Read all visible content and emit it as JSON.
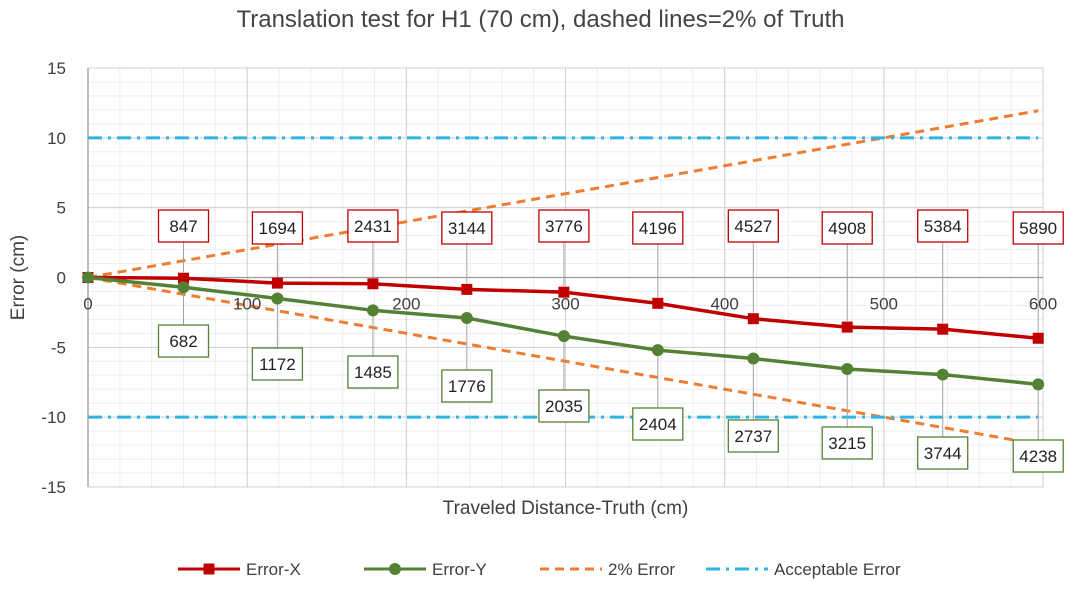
{
  "chart_data": {
    "type": "line",
    "title": "Translation test for H1 (70 cm), dashed lines=2% of Truth",
    "xlabel": "Traveled Distance-Truth (cm)",
    "ylabel": "Error (cm)",
    "xlim": [
      0,
      600
    ],
    "ylim": [
      -15,
      15
    ],
    "x_ticks": [
      0,
      100,
      200,
      300,
      400,
      500,
      600
    ],
    "y_ticks": [
      15,
      10,
      5,
      0,
      -5,
      -10,
      -15
    ],
    "grid": true,
    "legend_position": "bottom",
    "series": [
      {
        "name": "Error-X",
        "color": "#C00000",
        "marker": "square",
        "x": [
          0,
          60,
          119,
          179,
          238,
          299,
          358,
          418,
          477,
          537,
          597
        ],
        "y": [
          0,
          -0.05,
          -0.4,
          -0.45,
          -0.85,
          -1.05,
          -1.85,
          -2.95,
          -3.55,
          -3.7,
          -4.35
        ],
        "labels": [
          "",
          "847",
          "1694",
          "2431",
          "3144",
          "3776",
          "4196",
          "4527",
          "4908",
          "5384",
          "5890"
        ]
      },
      {
        "name": "Error-Y",
        "color": "#548235",
        "marker": "circle",
        "x": [
          0,
          60,
          119,
          179,
          238,
          299,
          358,
          418,
          477,
          537,
          597
        ],
        "y": [
          0,
          -0.7,
          -1.5,
          -2.35,
          -2.9,
          -4.2,
          -5.2,
          -5.8,
          -6.55,
          -6.95,
          -7.65
        ],
        "labels": [
          "",
          "682",
          "1172",
          "1485",
          "1776",
          "2035",
          "2404",
          "2737",
          "3215",
          "3744",
          "4238"
        ]
      },
      {
        "name": "2% Error",
        "color": "#ED7D31",
        "style": "dashed",
        "x": [
          0,
          597
        ],
        "y": [
          0,
          11.94
        ]
      },
      {
        "name": "2% Error (negative)",
        "color": "#ED7D31",
        "style": "dashed",
        "show_in_legend": false,
        "x": [
          0,
          597
        ],
        "y": [
          0,
          -11.94
        ]
      },
      {
        "name": "Acceptable Error",
        "color": "#2EB5E2",
        "style": "dash-dot",
        "x": [
          0,
          597
        ],
        "y": [
          10,
          10
        ]
      },
      {
        "name": "Acceptable Error (negative)",
        "color": "#2EB5E2",
        "style": "dash-dot",
        "show_in_legend": false,
        "x": [
          0,
          597
        ],
        "y": [
          -10,
          -10
        ]
      }
    ]
  }
}
